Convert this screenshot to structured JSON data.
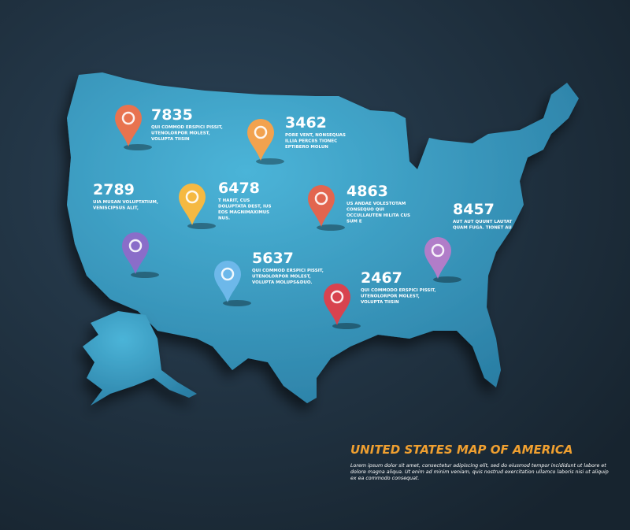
{
  "title": "UNITED STATES MAP OF AMERICA",
  "description": [
    "Lorem ipsum dolor sit amet, consectetur adipiscing elit, sed do eiusmod tempor incididunt ut labore et",
    "dolore magna aliqua. Ut enim ad minim veniam, quis nostrud exercitation ullamco laboris nisi ut aliquip",
    "ex ea commodo consequat."
  ],
  "callouts": [
    {
      "number": "7835",
      "lines": [
        "QUI COMMOD ERSPICI PISSIT,",
        "UTENOLORPOR MOLEST,",
        "VOLUPTA TIISIN"
      ]
    },
    {
      "number": "3462",
      "lines": [
        "PORE VENT, NONSEQUAS",
        "ILLIA PERCIIS TIONEC",
        "EPTIBERO MOLUN"
      ]
    },
    {
      "number": "2789",
      "lines": [
        "UIA MUSAN VOLUPTATIUM,",
        "VENISCIPSUS ALIT,"
      ]
    },
    {
      "number": "6478",
      "lines": [
        "T HARIT, CUS",
        "DOLUPTATA DEST, IUS",
        "EOS MAGNIMAXIMUS",
        "NUS."
      ]
    },
    {
      "number": "4863",
      "lines": [
        "US ANDAE VOLESTOTAM",
        "CONSEQUO QUI",
        "OCCULLAUTEN HILITA CUS",
        "SUM E"
      ]
    },
    {
      "number": "8457",
      "lines": [
        "AUT AUT QUUNT LAUTAT",
        "QUAM FUGA. TIONET AU"
      ]
    },
    {
      "number": "5637",
      "lines": [
        "QUI COMMOD ERSPICI PISSIT,",
        "UTENOLORPOR MOLEST,",
        "VOLUPTA MOLUPS&DUO."
      ]
    },
    {
      "number": "2467",
      "lines": [
        "QUI COMMODO ERSPICI PISSIT,",
        "UTENOLORPOR MOLEST,",
        "VOLUPTA TIISIN"
      ]
    }
  ]
}
